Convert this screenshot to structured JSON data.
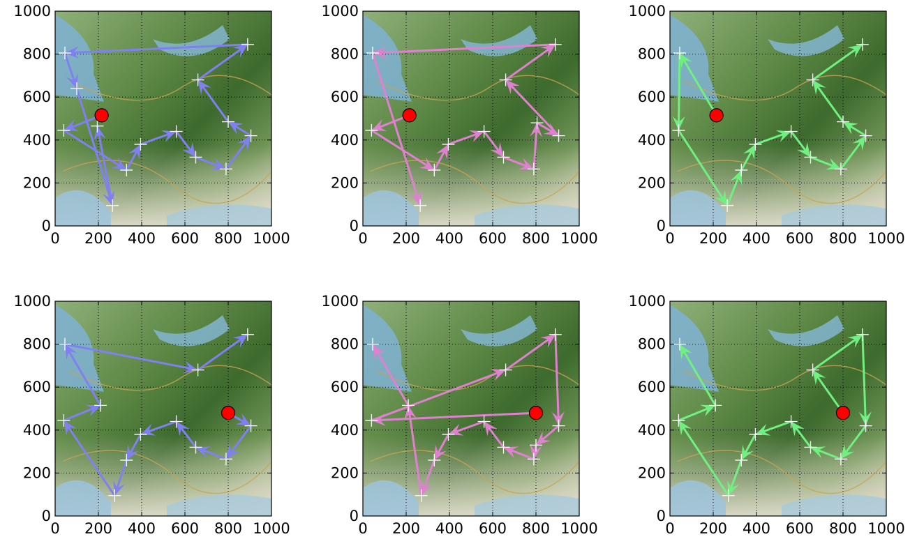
{
  "chart_data": [
    {
      "type": "line",
      "background": "map",
      "xlim": [
        0,
        1000
      ],
      "ylim": [
        0,
        1000
      ],
      "xticks": [
        "0",
        "200",
        "400",
        "600",
        "800",
        "1000"
      ],
      "yticks": [
        "0",
        "200",
        "400",
        "600",
        "800",
        "1000"
      ],
      "grid": true,
      "color": "#8080f0",
      "start_marker": {
        "x": 215,
        "y": 515,
        "color": "#ff0000"
      },
      "path": [
        {
          "x": 215,
          "y": 515
        },
        {
          "x": 40,
          "y": 445
        },
        {
          "x": 330,
          "y": 260
        },
        {
          "x": 395,
          "y": 380
        },
        {
          "x": 560,
          "y": 440
        },
        {
          "x": 650,
          "y": 320
        },
        {
          "x": 790,
          "y": 265
        },
        {
          "x": 905,
          "y": 420
        },
        {
          "x": 800,
          "y": 485
        },
        {
          "x": 660,
          "y": 680
        },
        {
          "x": 890,
          "y": 845
        },
        {
          "x": 45,
          "y": 805
        },
        {
          "x": 100,
          "y": 640
        },
        {
          "x": 265,
          "y": 95
        },
        {
          "x": 195,
          "y": 465
        }
      ]
    },
    {
      "type": "line",
      "background": "map",
      "xlim": [
        0,
        1000
      ],
      "ylim": [
        0,
        1000
      ],
      "xticks": [
        "0",
        "200",
        "400",
        "600",
        "800",
        "1000"
      ],
      "yticks": [
        "0",
        "200",
        "400",
        "600",
        "800",
        "1000"
      ],
      "grid": true,
      "color": "#e080d0",
      "start_marker": {
        "x": 215,
        "y": 515,
        "color": "#ff0000"
      },
      "path": [
        {
          "x": 215,
          "y": 515
        },
        {
          "x": 40,
          "y": 445
        },
        {
          "x": 330,
          "y": 260
        },
        {
          "x": 395,
          "y": 380
        },
        {
          "x": 560,
          "y": 440
        },
        {
          "x": 650,
          "y": 320
        },
        {
          "x": 790,
          "y": 265
        },
        {
          "x": 805,
          "y": 480
        },
        {
          "x": 905,
          "y": 420
        },
        {
          "x": 660,
          "y": 680
        },
        {
          "x": 890,
          "y": 845
        },
        {
          "x": 45,
          "y": 805
        },
        {
          "x": 265,
          "y": 95
        }
      ]
    },
    {
      "type": "line",
      "background": "map",
      "xlim": [
        0,
        1000
      ],
      "ylim": [
        0,
        1000
      ],
      "xticks": [
        "0",
        "200",
        "400",
        "600",
        "800",
        "1000"
      ],
      "yticks": [
        "0",
        "200",
        "400",
        "600",
        "800",
        "1000"
      ],
      "grid": true,
      "color": "#70f080",
      "start_marker": {
        "x": 215,
        "y": 515,
        "color": "#ff0000"
      },
      "path": [
        {
          "x": 215,
          "y": 515
        },
        {
          "x": 45,
          "y": 805
        },
        {
          "x": 40,
          "y": 445
        },
        {
          "x": 265,
          "y": 95
        },
        {
          "x": 330,
          "y": 260
        },
        {
          "x": 395,
          "y": 380
        },
        {
          "x": 560,
          "y": 440
        },
        {
          "x": 650,
          "y": 320
        },
        {
          "x": 790,
          "y": 265
        },
        {
          "x": 905,
          "y": 420
        },
        {
          "x": 800,
          "y": 485
        },
        {
          "x": 660,
          "y": 680
        },
        {
          "x": 890,
          "y": 845
        }
      ]
    },
    {
      "type": "line",
      "background": "map",
      "xlim": [
        0,
        1000
      ],
      "ylim": [
        0,
        1000
      ],
      "xticks": [
        "0",
        "200",
        "400",
        "600",
        "800",
        "1000"
      ],
      "yticks": [
        "0",
        "200",
        "400",
        "600",
        "800",
        "1000"
      ],
      "grid": true,
      "color": "#8080f0",
      "start_marker": {
        "x": 800,
        "y": 480,
        "color": "#ff0000"
      },
      "path": [
        {
          "x": 800,
          "y": 480
        },
        {
          "x": 905,
          "y": 420
        },
        {
          "x": 790,
          "y": 265
        },
        {
          "x": 650,
          "y": 320
        },
        {
          "x": 560,
          "y": 440
        },
        {
          "x": 395,
          "y": 380
        },
        {
          "x": 330,
          "y": 260
        },
        {
          "x": 275,
          "y": 95
        },
        {
          "x": 40,
          "y": 445
        },
        {
          "x": 210,
          "y": 515
        },
        {
          "x": 45,
          "y": 800
        },
        {
          "x": 660,
          "y": 680
        },
        {
          "x": 890,
          "y": 845
        }
      ]
    },
    {
      "type": "line",
      "background": "map",
      "xlim": [
        0,
        1000
      ],
      "ylim": [
        0,
        1000
      ],
      "xticks": [
        "0",
        "200",
        "400",
        "600",
        "800",
        "1000"
      ],
      "yticks": [
        "0",
        "200",
        "400",
        "600",
        "800",
        "1000"
      ],
      "grid": true,
      "color": "#e080d0",
      "start_marker": {
        "x": 800,
        "y": 480,
        "color": "#ff0000"
      },
      "path": [
        {
          "x": 800,
          "y": 480
        },
        {
          "x": 40,
          "y": 445
        },
        {
          "x": 660,
          "y": 680
        },
        {
          "x": 890,
          "y": 845
        },
        {
          "x": 905,
          "y": 420
        },
        {
          "x": 800,
          "y": 330
        },
        {
          "x": 790,
          "y": 265
        },
        {
          "x": 650,
          "y": 320
        },
        {
          "x": 560,
          "y": 440
        },
        {
          "x": 395,
          "y": 380
        },
        {
          "x": 330,
          "y": 260
        },
        {
          "x": 270,
          "y": 95
        },
        {
          "x": 210,
          "y": 515
        },
        {
          "x": 45,
          "y": 800
        }
      ]
    },
    {
      "type": "line",
      "background": "map",
      "xlim": [
        0,
        1000
      ],
      "ylim": [
        0,
        1000
      ],
      "xticks": [
        "0",
        "200",
        "400",
        "600",
        "800",
        "1000"
      ],
      "yticks": [
        "0",
        "200",
        "400",
        "600",
        "800",
        "1000"
      ],
      "grid": true,
      "color": "#70f080",
      "start_marker": {
        "x": 800,
        "y": 480,
        "color": "#ff0000"
      },
      "path": [
        {
          "x": 800,
          "y": 480
        },
        {
          "x": 660,
          "y": 680
        },
        {
          "x": 890,
          "y": 845
        },
        {
          "x": 905,
          "y": 420
        },
        {
          "x": 790,
          "y": 265
        },
        {
          "x": 650,
          "y": 320
        },
        {
          "x": 560,
          "y": 440
        },
        {
          "x": 395,
          "y": 380
        },
        {
          "x": 330,
          "y": 260
        },
        {
          "x": 270,
          "y": 95
        },
        {
          "x": 40,
          "y": 445
        },
        {
          "x": 210,
          "y": 515
        },
        {
          "x": 45,
          "y": 800
        }
      ]
    }
  ]
}
